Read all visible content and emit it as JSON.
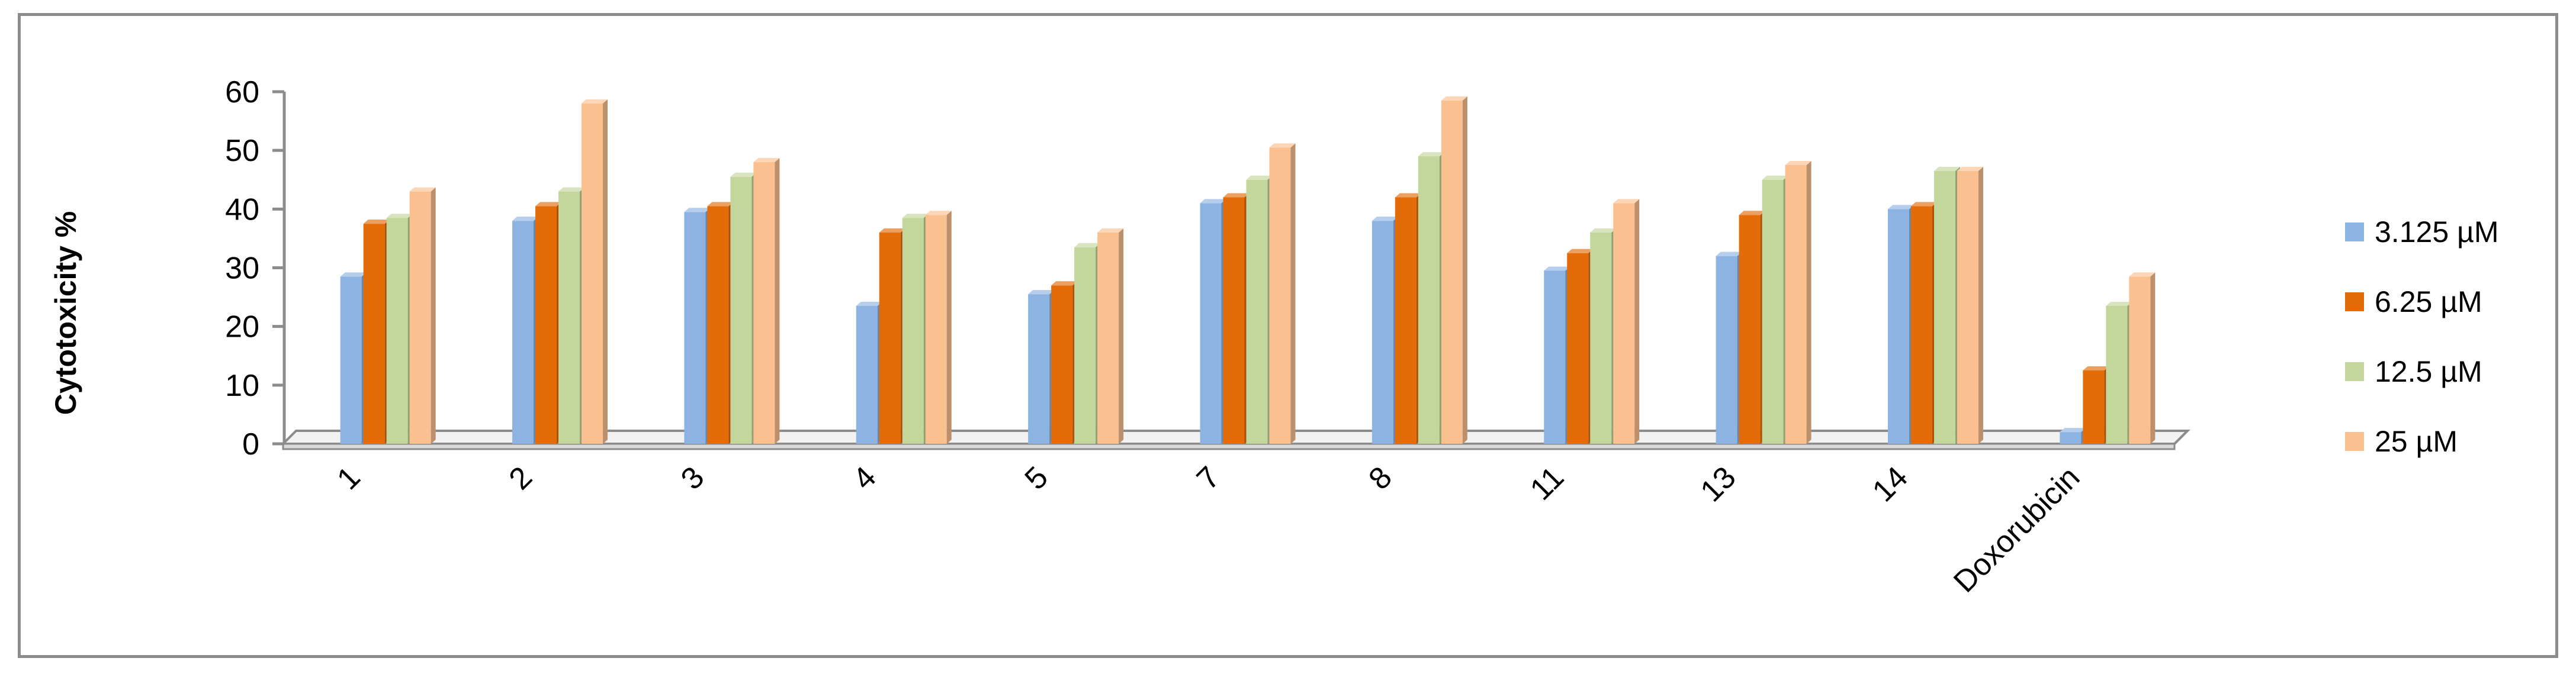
{
  "chart_data": {
    "type": "bar",
    "title": "",
    "xlabel": "",
    "ylabel": "Cytotoxicity %",
    "ylim": [
      0,
      60
    ],
    "yticks": [
      0,
      10,
      20,
      30,
      40,
      50,
      60
    ],
    "grid": false,
    "legend_position": "right",
    "categories": [
      "1",
      "2",
      "3",
      "4",
      "5",
      "7",
      "8",
      "11",
      "13",
      "14",
      "Doxorubicin"
    ],
    "series": [
      {
        "name": "3.125 µM",
        "color": "#8db3e2",
        "values": [
          28.5,
          38,
          39.5,
          23.5,
          25.5,
          41,
          38,
          29.5,
          32,
          40,
          2
        ]
      },
      {
        "name": "6.25 µM",
        "color": "#e36c09",
        "values": [
          37.5,
          40.5,
          40.5,
          36,
          27,
          42,
          42,
          32.5,
          39,
          40.5,
          12.5
        ]
      },
      {
        "name": "12.5 µM",
        "color": "#c3d69b",
        "values": [
          38.5,
          43,
          45.5,
          38.5,
          33.5,
          45,
          49,
          36,
          45,
          46.5,
          23.5
        ]
      },
      {
        "name": "25 µM",
        "color": "#fac090",
        "values": [
          43,
          58,
          48,
          39,
          36,
          50.5,
          58.5,
          41,
          47.5,
          46.5,
          28.5
        ]
      }
    ]
  }
}
